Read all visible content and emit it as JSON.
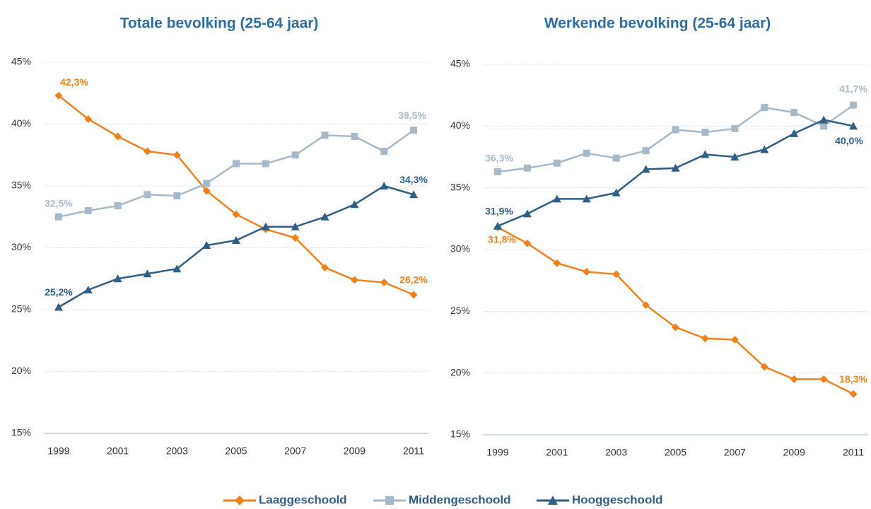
{
  "chart_data": [
    {
      "type": "line",
      "title": "Totale bevolking (25-64 jaar)",
      "x": [
        1999,
        2000,
        2001,
        2002,
        2003,
        2004,
        2005,
        2006,
        2007,
        2008,
        2009,
        2010,
        2011
      ],
      "xlim": [
        1998.5,
        2011.5
      ],
      "xticks": [
        1999,
        2001,
        2003,
        2005,
        2007,
        2009,
        2011
      ],
      "ylim": [
        15,
        45
      ],
      "yticks": [
        {
          "value": 15,
          "label": "15%"
        },
        {
          "value": 20,
          "label": "20%"
        },
        {
          "value": 25,
          "label": "25%"
        },
        {
          "value": 30,
          "label": "30%"
        },
        {
          "value": 35,
          "label": "35%"
        },
        {
          "value": 40,
          "label": "40%"
        },
        {
          "value": 45,
          "label": "45%"
        }
      ],
      "grid": true,
      "series": [
        {
          "name": "Laaggeschoold",
          "color": "#f0821e",
          "marker": "diamond",
          "values": [
            42.3,
            40.4,
            39.0,
            37.8,
            37.5,
            34.6,
            32.7,
            31.5,
            30.8,
            28.4,
            27.4,
            27.2,
            26.2
          ],
          "value_labels": [
            "42,3%",
            null,
            null,
            null,
            null,
            null,
            null,
            null,
            null,
            null,
            null,
            null,
            "26,2%"
          ]
        },
        {
          "name": "Middengeschoold",
          "color": "#a6b9c9",
          "marker": "square",
          "values": [
            32.5,
            33.0,
            33.4,
            34.3,
            34.2,
            35.2,
            36.8,
            36.8,
            37.5,
            39.1,
            39.0,
            37.8,
            39.5
          ],
          "value_labels": [
            "32,5%",
            null,
            null,
            null,
            null,
            null,
            null,
            null,
            null,
            null,
            null,
            null,
            "39,5%"
          ]
        },
        {
          "name": "Hooggeschoold",
          "color": "#2e5f86",
          "marker": "triangle",
          "values": [
            25.2,
            26.6,
            27.5,
            27.9,
            28.3,
            30.2,
            30.6,
            31.7,
            31.7,
            32.5,
            33.5,
            35.0,
            34.3
          ],
          "value_labels": [
            "25,2%",
            null,
            null,
            null,
            null,
            null,
            null,
            null,
            null,
            null,
            null,
            null,
            "34,3%"
          ]
        }
      ]
    },
    {
      "type": "line",
      "title": "Werkende bevolking (25-64 jaar)",
      "x": [
        1999,
        2000,
        2001,
        2002,
        2003,
        2004,
        2005,
        2006,
        2007,
        2008,
        2009,
        2010,
        2011
      ],
      "xlim": [
        1998.5,
        2011.5
      ],
      "xticks": [
        1999,
        2001,
        2003,
        2005,
        2007,
        2009,
        2011
      ],
      "ylim": [
        15,
        45
      ],
      "yticks": [
        {
          "value": 15,
          "label": "15%"
        },
        {
          "value": 20,
          "label": "20%"
        },
        {
          "value": 25,
          "label": "25%"
        },
        {
          "value": 30,
          "label": "30%"
        },
        {
          "value": 35,
          "label": "35%"
        },
        {
          "value": 40,
          "label": "40%"
        },
        {
          "value": 45,
          "label": "45%"
        }
      ],
      "grid": true,
      "series": [
        {
          "name": "Laaggeschoold",
          "color": "#f0821e",
          "marker": "diamond",
          "values": [
            31.8,
            30.5,
            28.9,
            28.2,
            28.0,
            25.5,
            23.7,
            22.8,
            22.7,
            20.5,
            19.5,
            19.5,
            18.3
          ],
          "value_labels": [
            "31,8%",
            null,
            null,
            null,
            null,
            null,
            null,
            null,
            null,
            null,
            null,
            null,
            "18,3%"
          ]
        },
        {
          "name": "Middengeschoold",
          "color": "#a6b9c9",
          "marker": "square",
          "values": [
            36.3,
            36.6,
            37.0,
            37.8,
            37.4,
            38.0,
            39.7,
            39.5,
            39.8,
            41.5,
            41.1,
            40.0,
            41.7
          ],
          "value_labels": [
            "36,3%",
            null,
            null,
            null,
            null,
            null,
            null,
            null,
            null,
            null,
            null,
            null,
            "41,7%"
          ]
        },
        {
          "name": "Hooggeschoold",
          "color": "#2e5f86",
          "marker": "triangle",
          "values": [
            31.9,
            32.9,
            34.1,
            34.1,
            34.6,
            36.5,
            36.6,
            37.7,
            37.5,
            38.1,
            39.4,
            40.5,
            40.0
          ],
          "value_labels": [
            "31,9%",
            null,
            null,
            null,
            null,
            null,
            null,
            null,
            null,
            null,
            null,
            null,
            "40,0%"
          ]
        }
      ]
    }
  ]
}
